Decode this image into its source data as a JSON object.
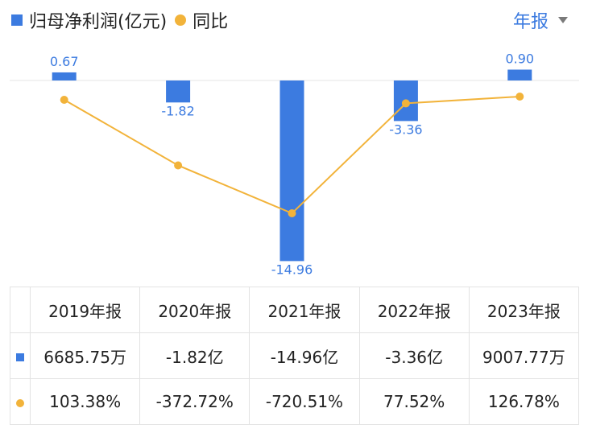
{
  "legend": {
    "bar_label": "归母净利润(亿元)",
    "line_label": "同比"
  },
  "period_selector": {
    "label": "年报"
  },
  "colors": {
    "bar": "#3c7be0",
    "line": "#f2b33a",
    "positive": "#e0484c",
    "negative": "#22a06b"
  },
  "chart_data": {
    "type": "bar",
    "categories": [
      "2019年报",
      "2020年报",
      "2021年报",
      "2022年报",
      "2023年报"
    ],
    "series": [
      {
        "name": "归母净利润(亿元)",
        "type": "bar",
        "values": [
          0.67,
          -1.82,
          -14.96,
          -3.36,
          0.9
        ],
        "labels": [
          "0.67",
          "-1.82",
          "-14.96",
          "-3.36",
          "0.90"
        ]
      },
      {
        "name": "同比",
        "type": "line",
        "values": [
          103.38,
          -372.72,
          -720.51,
          77.52,
          126.78
        ]
      }
    ],
    "grid": false
  },
  "table": {
    "headers": [
      "2019年报",
      "2020年报",
      "2021年报",
      "2022年报",
      "2023年报"
    ],
    "profit_row": [
      "6685.75万",
      "-1.82亿",
      "-14.96亿",
      "-3.36亿",
      "9007.77万"
    ],
    "yoy_row": [
      "103.38%",
      "-372.72%",
      "-720.51%",
      "77.52%",
      "126.78%"
    ]
  }
}
